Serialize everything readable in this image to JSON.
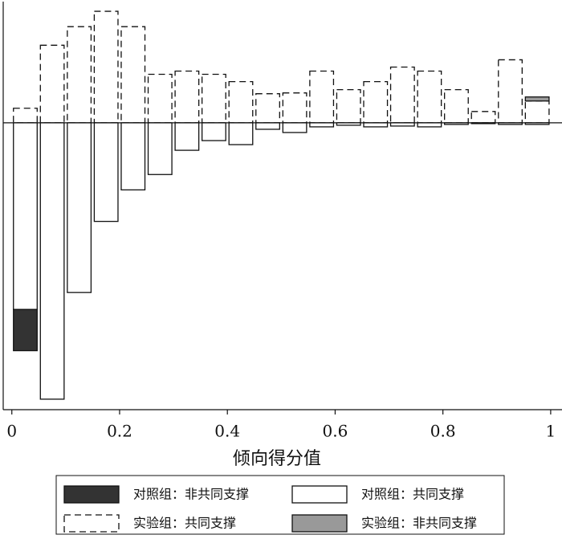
{
  "chart_data": {
    "type": "histogram",
    "x_label": "倾向得分值",
    "bins": [
      0,
      0.05,
      0.1,
      0.15,
      0.2,
      0.25,
      0.3,
      0.35,
      0.4,
      0.45,
      0.5,
      0.55,
      0.6,
      0.65,
      0.7,
      0.75,
      0.8,
      0.85,
      0.9,
      0.95,
      1
    ],
    "series": [
      {
        "name": "对照组：共同支撑",
        "color": "#ffffff",
        "line_style": "solid",
        "values": [
          -2.31,
          -3.42,
          -2.1,
          -1.22,
          -0.83,
          -0.64,
          -0.34,
          -0.22,
          -0.27,
          -0.08,
          -0.12,
          -0.05,
          -0.03,
          -0.05,
          -0.04,
          -0.05,
          -0.02,
          -0.01,
          -0.02,
          -0.02
        ]
      },
      {
        "name": "实验组：共同支撑",
        "color": "none",
        "line_style": "dashed",
        "values": [
          0.18,
          0.96,
          1.19,
          1.38,
          1.19,
          0.6,
          0.64,
          0.6,
          0.51,
          0.36,
          0.37,
          0.64,
          0.41,
          0.51,
          0.69,
          0.64,
          0.41,
          0.14,
          0.78,
          0.27
        ]
      },
      {
        "name": "对照组：非共同支撑",
        "color": "#333333",
        "line_style": "solid",
        "values": [
          -0.51,
          null,
          null,
          null,
          null,
          null,
          null,
          null,
          null,
          null,
          null,
          null,
          null,
          null,
          null,
          null,
          null,
          null,
          null,
          null
        ]
      },
      {
        "name": "实验组：非共同支撑",
        "color": "#999999",
        "line_style": "solid",
        "values": [
          null,
          null,
          null,
          null,
          null,
          null,
          null,
          null,
          null,
          null,
          null,
          null,
          null,
          null,
          null,
          null,
          null,
          null,
          null,
          0.05
        ]
      }
    ],
    "xlim": [
      -0.016,
      1.021
    ],
    "xticks": [
      0,
      0.2,
      0.4,
      0.6,
      0.8,
      1
    ],
    "ylim": [
      -3.55,
      1.5
    ]
  }
}
